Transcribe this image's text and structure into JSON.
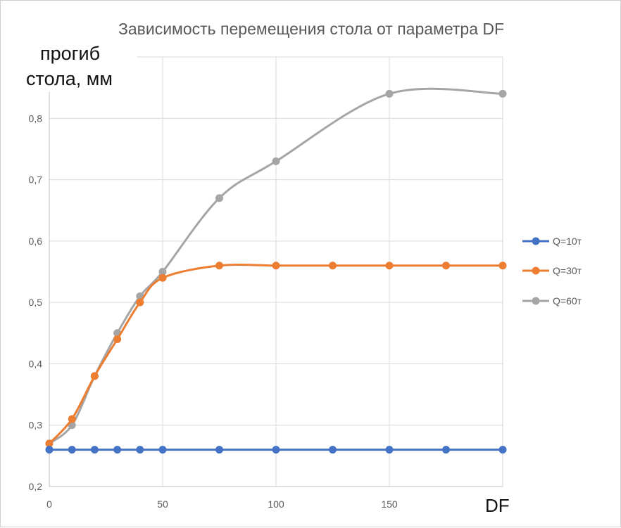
{
  "chart_data": {
    "type": "line",
    "title": "Зависимость перемещения стола от параметра DF",
    "ylabel_lines": [
      "прогиб",
      "стола, мм"
    ],
    "xlabel": "DF",
    "xlim": [
      0,
      200
    ],
    "ylim": [
      0.2,
      0.9
    ],
    "x_ticks": [
      0,
      50,
      100,
      150
    ],
    "y_ticks": [
      0.2,
      0.3,
      0.4,
      0.5,
      0.6,
      0.7,
      0.8
    ],
    "y_tick_labels": [
      "0,2",
      "0,3",
      "0,4",
      "0,5",
      "0,6",
      "0,7",
      "0,8"
    ],
    "grid": true,
    "legend_position": "right",
    "series": [
      {
        "name": "Q=10т",
        "color": "#4472C4",
        "x": [
          0,
          10,
          20,
          30,
          40,
          50,
          75,
          100,
          125,
          150,
          175,
          200
        ],
        "y": [
          0.26,
          0.26,
          0.26,
          0.26,
          0.26,
          0.26,
          0.26,
          0.26,
          0.26,
          0.26,
          0.26,
          0.26
        ]
      },
      {
        "name": "Q=30т",
        "color": "#ED7D31",
        "x": [
          0,
          10,
          20,
          30,
          40,
          50,
          75,
          100,
          125,
          150,
          175,
          200
        ],
        "y": [
          0.27,
          0.31,
          0.38,
          0.44,
          0.5,
          0.54,
          0.56,
          0.56,
          0.56,
          0.56,
          0.56,
          0.56
        ]
      },
      {
        "name": "Q=60т",
        "color": "#A5A5A5",
        "x": [
          0,
          10,
          20,
          30,
          40,
          50,
          75,
          100,
          150,
          200
        ],
        "y": [
          0.27,
          0.3,
          0.38,
          0.45,
          0.51,
          0.55,
          0.67,
          0.73,
          0.84,
          0.84
        ]
      }
    ]
  }
}
